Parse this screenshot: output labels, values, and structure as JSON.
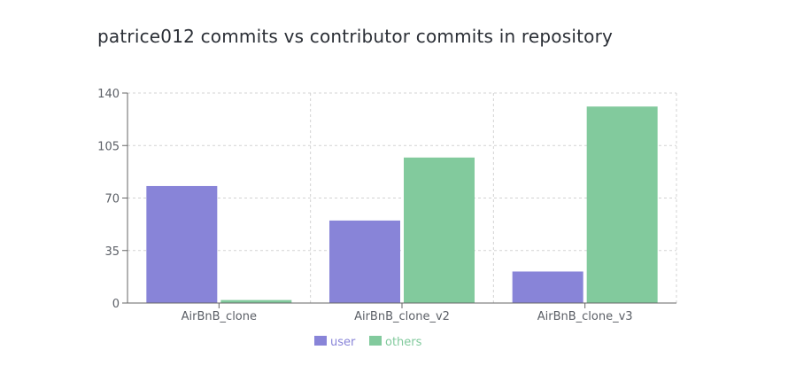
{
  "chart_data": {
    "type": "bar",
    "title": "patrice012 commits vs contributor commits in repository",
    "categories": [
      "AirBnB_clone",
      "AirBnB_clone_v2",
      "AirBnB_clone_v3"
    ],
    "series": [
      {
        "name": "user",
        "values": [
          78,
          55,
          21
        ],
        "color": "#8884d8"
      },
      {
        "name": "others",
        "values": [
          2,
          97,
          131
        ],
        "color": "#82ca9d"
      }
    ],
    "ylim": [
      0,
      140
    ],
    "yticks": [
      0,
      35,
      70,
      105,
      140
    ],
    "xlabel": "",
    "ylabel": "",
    "grid": true,
    "legend_position": "bottom"
  }
}
